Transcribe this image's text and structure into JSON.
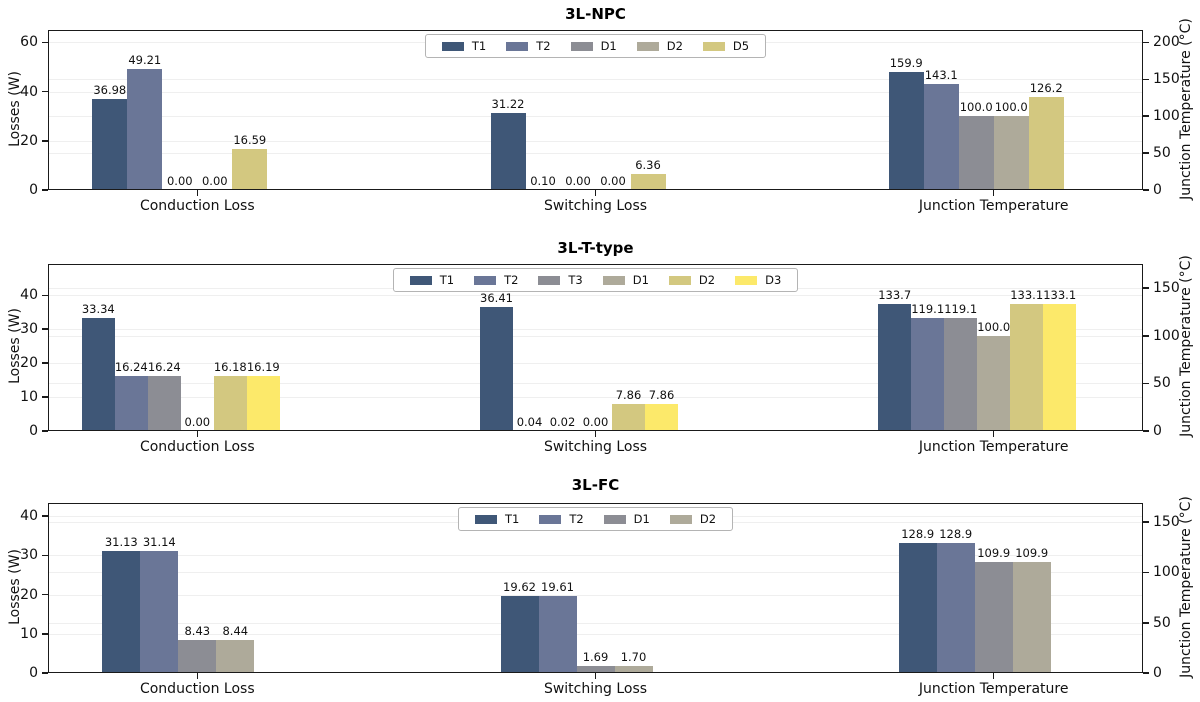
{
  "chart_data": [
    {
      "type": "bar",
      "title": "3L-NPC",
      "categories": [
        "Conduction Loss",
        "Switching Loss",
        "Junction Temperature"
      ],
      "category_axis": [
        "left",
        "left",
        "right"
      ],
      "ylabel_left": "Losses (W)",
      "ylabel_right": "Junction Temperature (°C)",
      "left_ticks": [
        0,
        20,
        40,
        60
      ],
      "right_ticks": [
        0,
        50,
        100,
        150,
        200
      ],
      "left_ylim": [
        0,
        65
      ],
      "right_ylim": [
        0,
        216.7
      ],
      "grid": true,
      "legend_position": "upper center",
      "series": [
        {
          "name": "T1",
          "color": "#3f5777",
          "values": [
            36.98,
            31.22,
            159.9
          ],
          "labels": [
            "36.98",
            "31.22",
            "159.9"
          ]
        },
        {
          "name": "T2",
          "color": "#6a7697",
          "values": [
            49.21,
            0.1,
            143.1
          ],
          "labels": [
            "49.21",
            "0.10",
            "143.1"
          ]
        },
        {
          "name": "D1",
          "color": "#8c8d94",
          "values": [
            0.0,
            0.0,
            100.0
          ],
          "labels": [
            "0.00",
            "0.00",
            "100.0"
          ]
        },
        {
          "name": "D2",
          "color": "#aeaa9a",
          "values": [
            0.0,
            0.0,
            100.0
          ],
          "labels": [
            "0.00",
            "0.00",
            "100.0"
          ]
        },
        {
          "name": "D5",
          "color": "#d3c880",
          "values": [
            16.59,
            6.36,
            126.2
          ],
          "labels": [
            "16.59",
            "6.36",
            "126.2"
          ]
        }
      ]
    },
    {
      "type": "bar",
      "title": "3L-T-type",
      "categories": [
        "Conduction Loss",
        "Switching Loss",
        "Junction Temperature"
      ],
      "category_axis": [
        "left",
        "left",
        "right"
      ],
      "ylabel_left": "Losses (W)",
      "ylabel_right": "Junction Temperature (°C)",
      "left_ticks": [
        0,
        10,
        20,
        30,
        40
      ],
      "right_ticks": [
        0,
        50,
        100,
        150
      ],
      "left_ylim": [
        0,
        49.2
      ],
      "right_ylim": [
        0,
        175.4
      ],
      "grid": true,
      "legend_position": "upper center",
      "series": [
        {
          "name": "T1",
          "color": "#3f5777",
          "values": [
            33.34,
            36.41,
            133.7
          ],
          "labels": [
            "33.34",
            "36.41",
            "133.7"
          ]
        },
        {
          "name": "T2",
          "color": "#6a7697",
          "values": [
            16.24,
            0.04,
            119.1
          ],
          "labels": [
            "16.24",
            "0.04",
            "119.1"
          ]
        },
        {
          "name": "T3",
          "color": "#8c8d94",
          "values": [
            16.24,
            0.02,
            119.1
          ],
          "labels": [
            "16.24",
            "0.02",
            "119.1"
          ]
        },
        {
          "name": "D1",
          "color": "#aeaa9a",
          "values": [
            0.0,
            0.0,
            100.0
          ],
          "labels": [
            "0.00",
            "0.00",
            "100.0"
          ]
        },
        {
          "name": "D2",
          "color": "#d3c880",
          "values": [
            16.18,
            7.86,
            133.1
          ],
          "labels": [
            "16.18",
            "7.86",
            "133.1"
          ]
        },
        {
          "name": "D3",
          "color": "#fce96a",
          "values": [
            16.19,
            7.86,
            133.1
          ],
          "labels": [
            "16.19",
            "7.86",
            "133.1"
          ]
        }
      ]
    },
    {
      "type": "bar",
      "title": "3L-FC",
      "categories": [
        "Conduction Loss",
        "Switching Loss",
        "Junction Temperature"
      ],
      "category_axis": [
        "left",
        "left",
        "right"
      ],
      "ylabel_left": "Losses (W)",
      "ylabel_right": "Junction Temperature (°C)",
      "left_ticks": [
        0,
        10,
        20,
        30,
        40
      ],
      "right_ticks": [
        0,
        50,
        100,
        150
      ],
      "left_ylim": [
        0,
        43.3
      ],
      "right_ylim": [
        0,
        169
      ],
      "grid": true,
      "legend_position": "upper center",
      "series": [
        {
          "name": "T1",
          "color": "#3f5777",
          "values": [
            31.13,
            19.62,
            128.9
          ],
          "labels": [
            "31.13",
            "19.62",
            "128.9"
          ]
        },
        {
          "name": "T2",
          "color": "#6a7697",
          "values": [
            31.14,
            19.61,
            128.9
          ],
          "labels": [
            "31.14",
            "19.61",
            "128.9"
          ]
        },
        {
          "name": "D1",
          "color": "#8c8d94",
          "values": [
            8.43,
            1.69,
            109.9
          ],
          "labels": [
            "8.43",
            "1.69",
            "109.9"
          ]
        },
        {
          "name": "D2",
          "color": "#aeaa9a",
          "values": [
            8.44,
            1.7,
            109.9
          ],
          "labels": [
            "8.44",
            "1.70",
            "109.9"
          ]
        }
      ]
    }
  ]
}
